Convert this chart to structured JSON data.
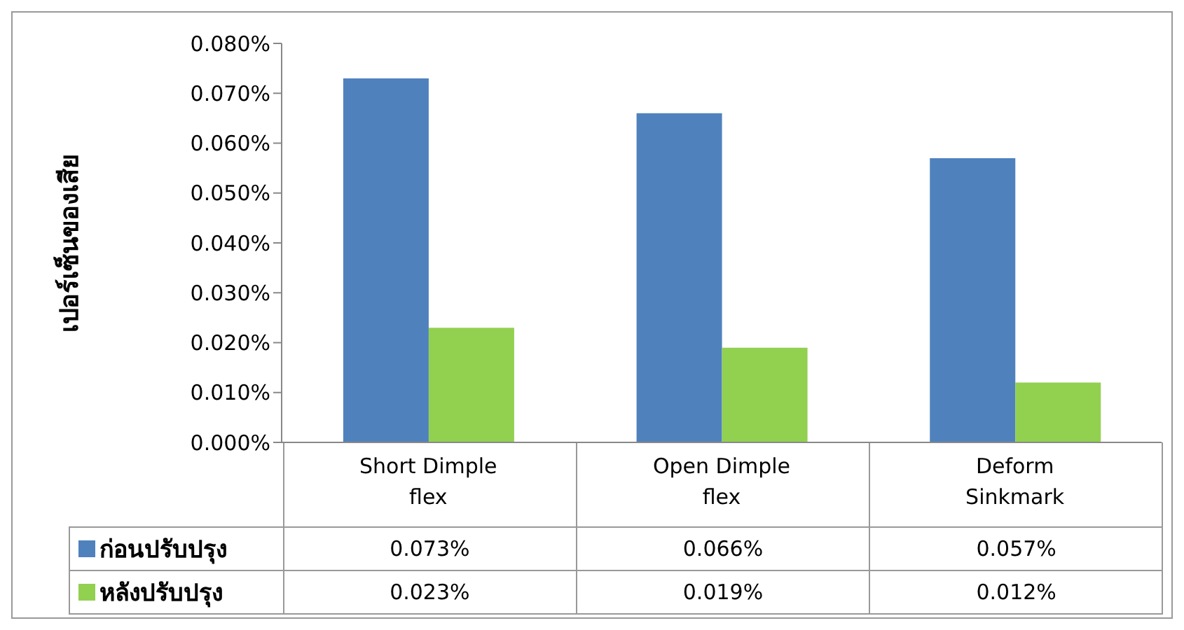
{
  "chart_data": {
    "type": "bar",
    "ylabel": "เปอร์เซ็นของเสีย",
    "categories": [
      "Short Dimple flex",
      "Open Dimple flex",
      "Deform Sinkmark"
    ],
    "series": [
      {
        "name": "ก่อนปรับปรุง",
        "color": "#4f81bd",
        "values": [
          0.073,
          0.066,
          0.057
        ],
        "value_labels": [
          "0.073%",
          "0.066%",
          "0.057%"
        ]
      },
      {
        "name": "หลังปรับปรุง",
        "color": "#92d050",
        "values": [
          0.023,
          0.019,
          0.012
        ],
        "value_labels": [
          "0.023%",
          "0.019%",
          "0.012%"
        ]
      }
    ],
    "ylim": [
      0,
      0.08
    ],
    "yticks": [
      {
        "value": 0,
        "label": "0.000%"
      },
      {
        "value": 0.01,
        "label": "0.010%"
      },
      {
        "value": 0.02,
        "label": "0.020%"
      },
      {
        "value": 0.03,
        "label": "0.030%"
      },
      {
        "value": 0.04,
        "label": "0.040%"
      },
      {
        "value": 0.05,
        "label": "0.050%"
      },
      {
        "value": 0.06,
        "label": "0.060%"
      },
      {
        "value": 0.07,
        "label": "0.070%"
      },
      {
        "value": 0.08,
        "label": "0.080%"
      }
    ],
    "grid": false,
    "legend": "bottom left"
  }
}
